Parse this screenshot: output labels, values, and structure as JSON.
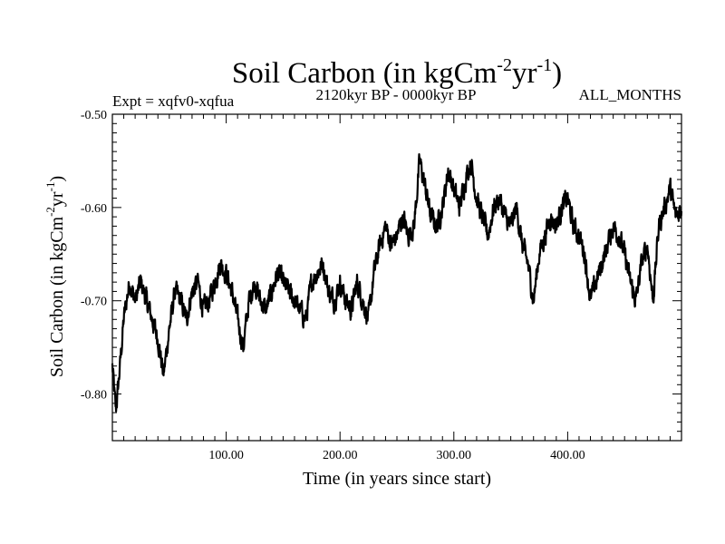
{
  "chart_data": {
    "type": "line",
    "title": {
      "base": "Soil Carbon (in kgCm",
      "exp1": "-2",
      "mid": "yr",
      "exp2": "-1",
      "end": ")"
    },
    "expt_label": "Expt = xqfv0-xqfua",
    "period_label": "2120kyr BP - 0000kyr BP",
    "months_label": "ALL_MONTHS",
    "xlabel": "Time (in years since start)",
    "ylabel": {
      "base": "Soil Carbon (in kgCm",
      "exp1": "-2",
      "mid": "yr",
      "exp2": "-1",
      "end": ")"
    },
    "xlim": [
      0,
      500
    ],
    "ylim": [
      -0.85,
      -0.5
    ],
    "xticks": [
      {
        "value": 100,
        "label": "100.00"
      },
      {
        "value": 200,
        "label": "200.00"
      },
      {
        "value": 300,
        "label": "300.00"
      },
      {
        "value": 400,
        "label": "400.00"
      }
    ],
    "yticks": [
      {
        "value": -0.5,
        "label": "-0.50"
      },
      {
        "value": -0.6,
        "label": "-0.60"
      },
      {
        "value": -0.7,
        "label": "-0.70"
      },
      {
        "value": -0.8,
        "label": "-0.80"
      }
    ],
    "series": [
      {
        "name": "Soil Carbon",
        "color": "#000000",
        "anchor_x": [
          0,
          3,
          6,
          10,
          15,
          20,
          25,
          30,
          35,
          40,
          45,
          50,
          55,
          60,
          65,
          70,
          75,
          80,
          85,
          90,
          95,
          100,
          105,
          110,
          115,
          120,
          125,
          130,
          135,
          140,
          145,
          150,
          155,
          160,
          165,
          170,
          175,
          180,
          185,
          190,
          195,
          200,
          205,
          210,
          215,
          220,
          225,
          230,
          235,
          240,
          245,
          250,
          255,
          260,
          265,
          270,
          275,
          280,
          285,
          290,
          295,
          300,
          305,
          310,
          315,
          320,
          325,
          330,
          335,
          340,
          345,
          350,
          355,
          360,
          365,
          370,
          375,
          380,
          385,
          390,
          395,
          400,
          405,
          410,
          415,
          420,
          425,
          430,
          435,
          440,
          445,
          450,
          455,
          460,
          465,
          470,
          475,
          480,
          485,
          490,
          495,
          500
        ],
        "anchor_y": [
          -0.77,
          -0.82,
          -0.78,
          -0.72,
          -0.68,
          -0.7,
          -0.68,
          -0.7,
          -0.72,
          -0.74,
          -0.78,
          -0.73,
          -0.69,
          -0.7,
          -0.72,
          -0.69,
          -0.68,
          -0.71,
          -0.7,
          -0.68,
          -0.66,
          -0.67,
          -0.69,
          -0.72,
          -0.75,
          -0.7,
          -0.68,
          -0.7,
          -0.71,
          -0.69,
          -0.67,
          -0.68,
          -0.69,
          -0.7,
          -0.71,
          -0.72,
          -0.68,
          -0.67,
          -0.66,
          -0.69,
          -0.7,
          -0.68,
          -0.7,
          -0.71,
          -0.68,
          -0.7,
          -0.72,
          -0.67,
          -0.64,
          -0.62,
          -0.64,
          -0.63,
          -0.61,
          -0.63,
          -0.62,
          -0.55,
          -0.58,
          -0.61,
          -0.62,
          -0.6,
          -0.56,
          -0.58,
          -0.6,
          -0.57,
          -0.55,
          -0.59,
          -0.61,
          -0.63,
          -0.6,
          -0.59,
          -0.61,
          -0.62,
          -0.6,
          -0.64,
          -0.66,
          -0.7,
          -0.65,
          -0.63,
          -0.61,
          -0.62,
          -0.6,
          -0.59,
          -0.62,
          -0.63,
          -0.65,
          -0.7,
          -0.68,
          -0.66,
          -0.64,
          -0.62,
          -0.63,
          -0.65,
          -0.68,
          -0.7,
          -0.66,
          -0.64,
          -0.7,
          -0.62,
          -0.6,
          -0.58,
          -0.61,
          -0.6
        ],
        "noise_amplitude": 0.009,
        "samples_per_year": 4
      }
    ]
  }
}
